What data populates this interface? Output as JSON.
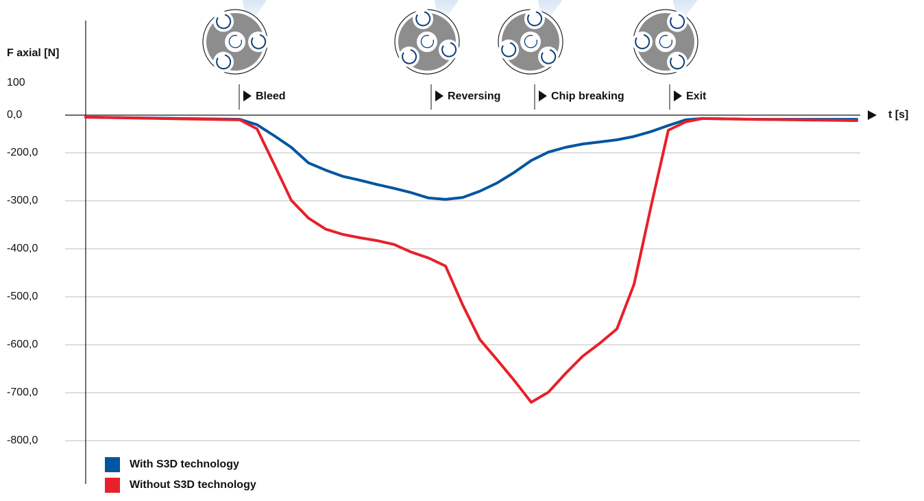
{
  "chart_data": {
    "type": "line",
    "y_label": "F axial [N]",
    "x_label": "t [s]",
    "x": [
      0,
      225,
      250,
      275,
      300,
      325,
      350,
      375,
      400,
      425,
      450,
      475,
      500,
      525,
      550,
      575,
      600,
      625,
      650,
      675,
      700,
      725,
      750,
      775,
      800,
      825,
      850,
      875,
      900,
      975,
      1125
    ],
    "xlim": [
      0,
      1125
    ],
    "series": [
      {
        "name": "With S3D technology",
        "color": "#0055a0",
        "values": [
          -11,
          -22,
          -51,
          -109,
          -171,
          -221,
          -236,
          -249,
          -257,
          -266,
          -274,
          -283,
          -294,
          -297,
          -293,
          -280,
          -263,
          -241,
          -216,
          -196,
          -171,
          -153,
          -142,
          -131,
          -113,
          -87,
          -55,
          -25,
          -18,
          -22,
          -22
        ]
      },
      {
        "name": "Without S3D technology",
        "color": "#e8202a",
        "values": [
          -11,
          -25,
          -73,
          -224,
          -299,
          -336,
          -359,
          -370,
          -377,
          -383,
          -391,
          -407,
          -419,
          -436,
          -517,
          -589,
          -631,
          -674,
          -720,
          -699,
          -660,
          -624,
          -597,
          -567,
          -474,
          -310,
          -80,
          -36,
          -18,
          -22,
          -29
        ]
      }
    ],
    "yticks": [
      {
        "value": 100,
        "label": "100"
      },
      {
        "value": 0,
        "label": "0,0"
      },
      {
        "value": -200,
        "label": "-200,0"
      },
      {
        "value": -300,
        "label": "-300,0"
      },
      {
        "value": -400,
        "label": "-400,0"
      },
      {
        "value": -500,
        "label": "-500,0"
      },
      {
        "value": -600,
        "label": "-600,0"
      },
      {
        "value": -700,
        "label": "-700,0"
      },
      {
        "value": -800,
        "label": "-800,0"
      }
    ],
    "annotations": [
      {
        "x": 224,
        "text": "Bleed"
      },
      {
        "x": 504,
        "text": "Reversing"
      },
      {
        "x": 655,
        "text": "Chip breaking"
      },
      {
        "x": 852,
        "text": "Exit"
      }
    ],
    "grid": true
  }
}
